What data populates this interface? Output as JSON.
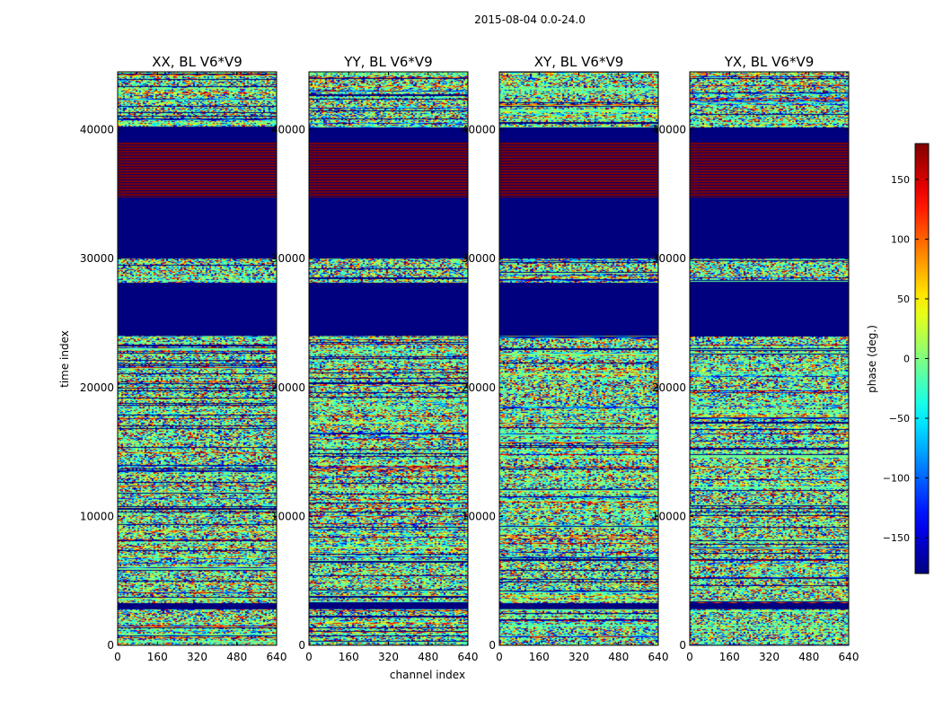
{
  "figure": {
    "suptitle": "2015-08-04 0.0-24.0",
    "xlabel": "channel index",
    "ylabel": "time index"
  },
  "chart_data": {
    "type": "heatmap",
    "suptitle": "2015-08-04 0.0-24.0",
    "xlabel": "channel index",
    "ylabel": "time index",
    "xlim": [
      0,
      640
    ],
    "ylim": [
      0,
      44500
    ],
    "x_ticks": [
      0,
      160,
      320,
      480,
      640
    ],
    "y_ticks": [
      0,
      10000,
      20000,
      30000,
      40000
    ],
    "colormap": "jet",
    "panels": [
      {
        "title": "XX, BL V6*V9",
        "pol": "XX"
      },
      {
        "title": "YY, BL V6*V9",
        "pol": "YY"
      },
      {
        "title": "XY, BL V6*V9",
        "pol": "XY"
      },
      {
        "title": "YX, BL V6*V9",
        "pol": "YX"
      }
    ],
    "colorbar": {
      "label": "phase (deg.)",
      "range": [
        -180,
        180
      ],
      "ticks": [
        -150,
        -100,
        -50,
        0,
        50,
        100,
        150
      ],
      "tick_labels": [
        "−150",
        "−100",
        "−50",
        "0",
        "50",
        "100",
        "150"
      ]
    },
    "regions": [
      {
        "y": [
          0,
          1000
        ],
        "pattern": "noise"
      },
      {
        "y": [
          1000,
          2800
        ],
        "pattern": "striped-noise"
      },
      {
        "y": [
          2800,
          3300
        ],
        "pattern": "flagged"
      },
      {
        "y": [
          3300,
          24000
        ],
        "pattern": "striped-noise"
      },
      {
        "y": [
          24000,
          28200
        ],
        "pattern": "flagged"
      },
      {
        "y": [
          28200,
          30000
        ],
        "pattern": "striped-noise"
      },
      {
        "y": [
          30000,
          34800
        ],
        "pattern": "flagged"
      },
      {
        "y": [
          34800,
          39000
        ],
        "pattern": "striped +180/-180"
      },
      {
        "y": [
          39000,
          40200
        ],
        "pattern": "flagged"
      },
      {
        "y": [
          40200,
          44500
        ],
        "pattern": "striped-noise"
      }
    ]
  },
  "colors": {
    "flagged": "#00007f",
    "max_phase": "#800000",
    "frame": "#000000"
  }
}
